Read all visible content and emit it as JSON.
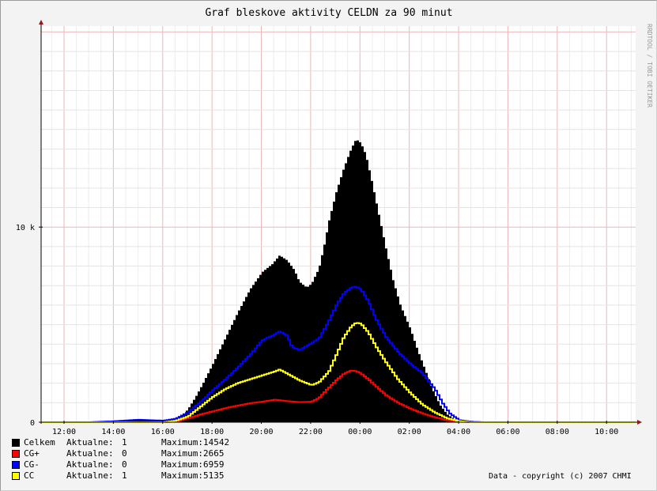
{
  "chart_data": {
    "type": "area",
    "title": "Graf bleskove aktivity CELDN za 90 minut",
    "watermark": "RRDTOOL / TOBI OETIKER",
    "copyright": "Data - copyright (c) 2007 CHMI",
    "x_tick_labels": [
      "12:00",
      "14:00",
      "16:00",
      "18:00",
      "20:00",
      "22:00",
      "00:00",
      "02:00",
      "04:00",
      "06:00",
      "08:00",
      "10:00"
    ],
    "x_tick_hours": [
      12,
      14,
      16,
      18,
      20,
      22,
      24,
      26,
      28,
      30,
      32,
      34
    ],
    "xlim_hours": [
      11.07,
      35.18
    ],
    "y_tick_labels": [
      "0",
      "10 k"
    ],
    "y_tick_values": [
      0,
      10000
    ],
    "ylim": [
      0,
      20300
    ],
    "grid": true,
    "legend_position": "bottom-left",
    "current_label": "Aktualne:",
    "max_label": "Maximum:",
    "series": [
      {
        "name": "Celkem",
        "color": "#000000",
        "style": "area",
        "current": "1",
        "maximum": "14542",
        "points": [
          [
            11.07,
            0
          ],
          [
            14.0,
            0
          ],
          [
            14.5,
            60
          ],
          [
            15.0,
            140
          ],
          [
            15.3,
            120
          ],
          [
            16.0,
            100
          ],
          [
            16.5,
            150
          ],
          [
            16.8,
            350
          ],
          [
            17.0,
            700
          ],
          [
            17.3,
            1300
          ],
          [
            17.6,
            2000
          ],
          [
            18.0,
            3000
          ],
          [
            18.5,
            4300
          ],
          [
            19.0,
            5600
          ],
          [
            19.5,
            6800
          ],
          [
            20.0,
            7700
          ],
          [
            20.4,
            8100
          ],
          [
            20.7,
            8550
          ],
          [
            21.0,
            8300
          ],
          [
            21.3,
            7800
          ],
          [
            21.5,
            7200
          ],
          [
            21.8,
            6900
          ],
          [
            22.0,
            7100
          ],
          [
            22.3,
            7900
          ],
          [
            22.5,
            9000
          ],
          [
            22.7,
            10300
          ],
          [
            23.0,
            11800
          ],
          [
            23.3,
            13000
          ],
          [
            23.6,
            14000
          ],
          [
            23.8,
            14500
          ],
          [
            24.0,
            14300
          ],
          [
            24.2,
            13700
          ],
          [
            24.4,
            12600
          ],
          [
            24.7,
            10800
          ],
          [
            25.0,
            9000
          ],
          [
            25.3,
            7300
          ],
          [
            25.6,
            6000
          ],
          [
            26.0,
            4800
          ],
          [
            26.3,
            3700
          ],
          [
            26.6,
            2700
          ],
          [
            26.9,
            1700
          ],
          [
            27.2,
            900
          ],
          [
            27.5,
            400
          ],
          [
            27.8,
            150
          ],
          [
            28.0,
            50
          ],
          [
            28.5,
            20
          ],
          [
            30.0,
            0
          ],
          [
            35.18,
            0
          ]
        ]
      },
      {
        "name": "CG+",
        "color": "#ff0000",
        "style": "line",
        "current": "0",
        "maximum": "2665",
        "points": [
          [
            11.07,
            0
          ],
          [
            16.0,
            0
          ],
          [
            16.5,
            40
          ],
          [
            17.0,
            200
          ],
          [
            17.5,
            400
          ],
          [
            18.0,
            560
          ],
          [
            18.5,
            720
          ],
          [
            19.0,
            850
          ],
          [
            19.5,
            970
          ],
          [
            20.0,
            1050
          ],
          [
            20.5,
            1150
          ],
          [
            20.7,
            1130
          ],
          [
            21.0,
            1080
          ],
          [
            21.5,
            1030
          ],
          [
            22.0,
            1050
          ],
          [
            22.3,
            1250
          ],
          [
            22.6,
            1650
          ],
          [
            23.0,
            2150
          ],
          [
            23.3,
            2480
          ],
          [
            23.6,
            2650
          ],
          [
            23.8,
            2620
          ],
          [
            24.0,
            2500
          ],
          [
            24.3,
            2200
          ],
          [
            24.6,
            1850
          ],
          [
            25.0,
            1400
          ],
          [
            25.5,
            1000
          ],
          [
            26.0,
            700
          ],
          [
            26.5,
            450
          ],
          [
            27.0,
            250
          ],
          [
            27.5,
            100
          ],
          [
            28.0,
            30
          ],
          [
            28.5,
            0
          ],
          [
            35.18,
            0
          ]
        ]
      },
      {
        "name": "CG-",
        "color": "#0000ff",
        "style": "line",
        "current": "0",
        "maximum": "6959",
        "points": [
          [
            11.07,
            0
          ],
          [
            13.0,
            0
          ],
          [
            14.0,
            50
          ],
          [
            15.0,
            130
          ],
          [
            15.3,
            110
          ],
          [
            16.0,
            80
          ],
          [
            16.5,
            180
          ],
          [
            17.0,
            520
          ],
          [
            17.5,
            1050
          ],
          [
            18.0,
            1650
          ],
          [
            18.5,
            2200
          ],
          [
            19.0,
            2800
          ],
          [
            19.5,
            3450
          ],
          [
            20.0,
            4200
          ],
          [
            20.5,
            4500
          ],
          [
            20.7,
            4650
          ],
          [
            21.0,
            4450
          ],
          [
            21.2,
            3850
          ],
          [
            21.5,
            3700
          ],
          [
            22.0,
            4050
          ],
          [
            22.3,
            4300
          ],
          [
            22.7,
            5200
          ],
          [
            23.0,
            6000
          ],
          [
            23.3,
            6600
          ],
          [
            23.6,
            6900
          ],
          [
            23.8,
            6950
          ],
          [
            24.0,
            6800
          ],
          [
            24.3,
            6200
          ],
          [
            24.6,
            5300
          ],
          [
            25.0,
            4400
          ],
          [
            25.5,
            3600
          ],
          [
            26.0,
            3000
          ],
          [
            26.5,
            2500
          ],
          [
            27.0,
            1700
          ],
          [
            27.3,
            1000
          ],
          [
            27.6,
            450
          ],
          [
            28.0,
            100
          ],
          [
            28.5,
            20
          ],
          [
            29.0,
            0
          ],
          [
            35.18,
            0
          ]
        ]
      },
      {
        "name": "CC",
        "color": "#ffff00",
        "style": "line",
        "current": "1",
        "maximum": "5135",
        "points": [
          [
            11.07,
            0
          ],
          [
            16.0,
            0
          ],
          [
            16.5,
            80
          ],
          [
            17.0,
            300
          ],
          [
            17.5,
            800
          ],
          [
            18.0,
            1300
          ],
          [
            18.5,
            1700
          ],
          [
            19.0,
            2000
          ],
          [
            19.5,
            2200
          ],
          [
            20.0,
            2400
          ],
          [
            20.5,
            2600
          ],
          [
            20.7,
            2700
          ],
          [
            21.0,
            2500
          ],
          [
            21.5,
            2150
          ],
          [
            22.0,
            1900
          ],
          [
            22.3,
            2050
          ],
          [
            22.7,
            2600
          ],
          [
            23.0,
            3450
          ],
          [
            23.3,
            4350
          ],
          [
            23.6,
            4900
          ],
          [
            23.8,
            5100
          ],
          [
            24.0,
            5050
          ],
          [
            24.3,
            4600
          ],
          [
            24.6,
            3900
          ],
          [
            25.0,
            3100
          ],
          [
            25.5,
            2200
          ],
          [
            26.0,
            1500
          ],
          [
            26.5,
            900
          ],
          [
            27.0,
            500
          ],
          [
            27.5,
            200
          ],
          [
            28.0,
            50
          ],
          [
            28.5,
            0
          ],
          [
            35.18,
            0
          ]
        ]
      }
    ]
  }
}
